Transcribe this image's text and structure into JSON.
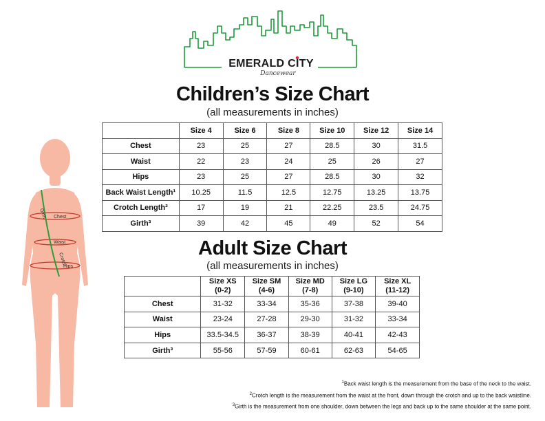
{
  "brand": {
    "name": "EMERALD CITY",
    "tagline": "Dancewear"
  },
  "children": {
    "title": "Children’s Size Chart",
    "subtitle": "(all measurements in inches)",
    "columns": [
      "Size 4",
      "Size 6",
      "Size 8",
      "Size 10",
      "Size 12",
      "Size 14"
    ],
    "rows": [
      {
        "label": "Chest",
        "values": [
          "23",
          "25",
          "27",
          "28.5",
          "30",
          "31.5"
        ]
      },
      {
        "label": "Waist",
        "values": [
          "22",
          "23",
          "24",
          "25",
          "26",
          "27"
        ]
      },
      {
        "label": "Hips",
        "values": [
          "23",
          "25",
          "27",
          "28.5",
          "30",
          "32"
        ]
      },
      {
        "label": "Back Waist Length¹",
        "values": [
          "10.25",
          "11.5",
          "12.5",
          "12.75",
          "13.25",
          "13.75"
        ]
      },
      {
        "label": "Crotch Length²",
        "values": [
          "17",
          "19",
          "21",
          "22.25",
          "23.5",
          "24.75"
        ]
      },
      {
        "label": "Girth³",
        "values": [
          "39",
          "42",
          "45",
          "49",
          "52",
          "54"
        ]
      }
    ]
  },
  "adult": {
    "title": "Adult Size Chart",
    "subtitle": "(all measurements in inches)",
    "columns": [
      {
        "size": "Size XS",
        "range": "(0-2)"
      },
      {
        "size": "Size SM",
        "range": "(4-6)"
      },
      {
        "size": "Size MD",
        "range": "(7-8)"
      },
      {
        "size": "Size LG",
        "range": "(9-10)"
      },
      {
        "size": "Size XL",
        "range": "(11-12)"
      }
    ],
    "rows": [
      {
        "label": "Chest",
        "values": [
          "31-32",
          "33-34",
          "35-36",
          "37-38",
          "39-40"
        ]
      },
      {
        "label": "Waist",
        "values": [
          "23-24",
          "27-28",
          "29-30",
          "31-32",
          "33-34"
        ]
      },
      {
        "label": "Hips",
        "values": [
          "33.5-34.5",
          "36-37",
          "38-39",
          "40-41",
          "42-43"
        ]
      },
      {
        "label": "Girth³",
        "values": [
          "55-56",
          "57-59",
          "60-61",
          "62-63",
          "54-65"
        ]
      }
    ]
  },
  "figure": {
    "labels": {
      "girth": "Girth",
      "chest": "Chest",
      "waist": "Waist",
      "crotch": "Crotch",
      "hips": "Hips"
    },
    "colors": {
      "body": "#f7b8a4",
      "measure_line": "#c0392b",
      "girth_line": "#2e9c3a"
    }
  },
  "footnotes": [
    {
      "mark": "1",
      "text": "Back waist length is the measurement from the base of the neck to the waist."
    },
    {
      "mark": "2",
      "text": "Crotch length is the measurement from the waist at the front, down through the crotch and up to the back waistline."
    },
    {
      "mark": "3",
      "text": "Girth is the measurement from one shoulder, down between the legs and back up to the same shoulder at the same point."
    }
  ],
  "colors": {
    "logo_green": "#1c9a3a",
    "logo_red": "#d7263d"
  }
}
